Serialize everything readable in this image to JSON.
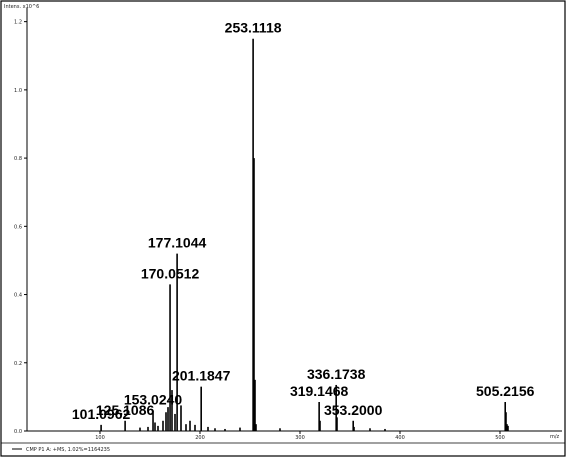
{
  "chart_data": {
    "type": "bar",
    "ylabel": "Intens. x10^6",
    "x_ticks": [
      100,
      200,
      300,
      400,
      500
    ],
    "y_ticks": [
      0.0,
      0.2,
      0.4,
      0.6,
      0.8,
      1.0,
      1.2
    ],
    "x_tick_labels": [
      "100",
      "200",
      "300",
      "400",
      "500"
    ],
    "y_tick_labels": [
      "0.0",
      "0.2",
      "0.4",
      "0.6",
      "0.8",
      "1.0",
      "1.2"
    ],
    "x_end_label": "m/z",
    "xlim": [
      27,
      562
    ],
    "ylim": [
      0,
      1.24
    ],
    "footer_text": "CMP P1 A: +MS, 1.02%=1164235",
    "labeled_peaks": [
      {
        "label": "101.0962",
        "x": 101.0962,
        "y": 0.018
      },
      {
        "label": "125.1086",
        "x": 125.1086,
        "y": 0.03
      },
      {
        "label": "153.0240",
        "x": 153.024,
        "y": 0.06
      },
      {
        "label": "170.0512",
        "x": 170.0512,
        "y": 0.43
      },
      {
        "label": "177.1044",
        "x": 177.1044,
        "y": 0.52
      },
      {
        "label": "201.1847",
        "x": 201.1847,
        "y": 0.13
      },
      {
        "label": "253.1118",
        "x": 253.1118,
        "y": 1.15
      },
      {
        "label": "319.1468",
        "x": 319.1468,
        "y": 0.085
      },
      {
        "label": "336.1738",
        "x": 336.1738,
        "y": 0.135
      },
      {
        "label": "353.2000",
        "x": 353.2,
        "y": 0.03
      },
      {
        "label": "505.2156",
        "x": 505.2156,
        "y": 0.085
      }
    ],
    "minor_peaks": [
      {
        "x": 140,
        "y": 0.01
      },
      {
        "x": 148,
        "y": 0.012
      },
      {
        "x": 155,
        "y": 0.025
      },
      {
        "x": 158,
        "y": 0.015
      },
      {
        "x": 163,
        "y": 0.03
      },
      {
        "x": 166,
        "y": 0.055
      },
      {
        "x": 168,
        "y": 0.07
      },
      {
        "x": 172,
        "y": 0.12
      },
      {
        "x": 175,
        "y": 0.05
      },
      {
        "x": 181,
        "y": 0.075
      },
      {
        "x": 186,
        "y": 0.02
      },
      {
        "x": 190,
        "y": 0.03
      },
      {
        "x": 195,
        "y": 0.018
      },
      {
        "x": 208,
        "y": 0.012
      },
      {
        "x": 215,
        "y": 0.008
      },
      {
        "x": 225,
        "y": 0.006
      },
      {
        "x": 240,
        "y": 0.01
      },
      {
        "x": 254,
        "y": 0.8
      },
      {
        "x": 255,
        "y": 0.15
      },
      {
        "x": 256,
        "y": 0.02
      },
      {
        "x": 280,
        "y": 0.008
      },
      {
        "x": 320,
        "y": 0.03
      },
      {
        "x": 337,
        "y": 0.04
      },
      {
        "x": 354,
        "y": 0.012
      },
      {
        "x": 370,
        "y": 0.008
      },
      {
        "x": 385,
        "y": 0.006
      },
      {
        "x": 506,
        "y": 0.055
      },
      {
        "x": 507,
        "y": 0.02
      },
      {
        "x": 508,
        "y": 0.015
      }
    ]
  }
}
